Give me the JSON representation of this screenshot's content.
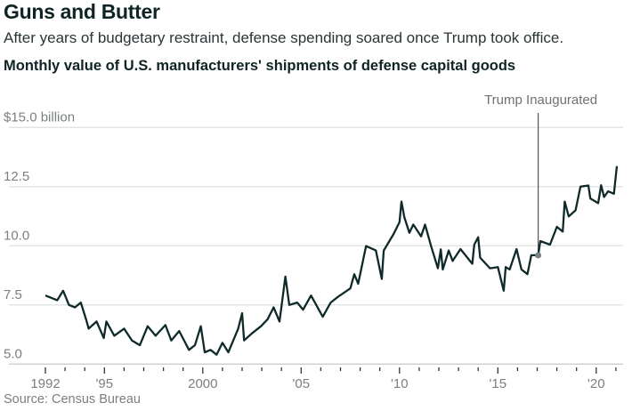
{
  "header": {
    "title": "Guns and Butter",
    "subtitle": "After years of budgetary restraint, defense spending soared once Trump took office.",
    "chart_title": "Monthly value of U.S. manufacturers' shipments of defense capital goods"
  },
  "source": "Source: Census Bureau",
  "chart_data": {
    "type": "line",
    "title": "Monthly value of U.S. manufacturers' shipments of defense capital goods",
    "ylabel": "",
    "xlabel": "",
    "ylim": [
      5.0,
      15.0
    ],
    "xlim": [
      1992,
      2021.1
    ],
    "y_ticks": [
      {
        "value": 15.0,
        "label": "$15.0 billion"
      },
      {
        "value": 12.5,
        "label": "12.5"
      },
      {
        "value": 10.0,
        "label": "10.0"
      },
      {
        "value": 7.5,
        "label": "7.5"
      },
      {
        "value": 5.0,
        "label": "5.0"
      }
    ],
    "x_ticks": [
      {
        "value": 1992,
        "label": "1992"
      },
      {
        "value": 1995,
        "label": "'95"
      },
      {
        "value": 2000,
        "label": "2000"
      },
      {
        "value": 2005,
        "label": "'05"
      },
      {
        "value": 2010,
        "label": "'10"
      },
      {
        "value": 2015,
        "label": "'15"
      },
      {
        "value": 2020,
        "label": "'20"
      }
    ],
    "grid": true,
    "line_color": "#0f2a2a",
    "annotation": {
      "label": "Trump Inaugurated",
      "x": 2017.05,
      "y": 9.6,
      "color": "#7a7f7f"
    },
    "series": [
      {
        "points": [
          [
            1992.0,
            7.9
          ],
          [
            1992.3,
            7.8
          ],
          [
            1992.6,
            7.7
          ],
          [
            1992.9,
            8.1
          ],
          [
            1993.2,
            7.5
          ],
          [
            1993.5,
            7.4
          ],
          [
            1993.8,
            7.6
          ],
          [
            1994.1,
            6.8
          ],
          [
            1994.2,
            6.5
          ],
          [
            1994.6,
            6.8
          ],
          [
            1994.97,
            6.1
          ],
          [
            1995.1,
            6.8
          ],
          [
            1995.5,
            6.2
          ],
          [
            1996.0,
            6.5
          ],
          [
            1996.4,
            6.0
          ],
          [
            1996.8,
            5.8
          ],
          [
            1997.2,
            6.6
          ],
          [
            1997.6,
            6.2
          ],
          [
            1998.1,
            6.65
          ],
          [
            1998.4,
            6.0
          ],
          [
            1998.8,
            6.4
          ],
          [
            1999.3,
            5.6
          ],
          [
            1999.6,
            5.8
          ],
          [
            1999.9,
            6.6
          ],
          [
            2000.1,
            5.5
          ],
          [
            2000.4,
            5.6
          ],
          [
            2000.7,
            5.4
          ],
          [
            2001.0,
            5.9
          ],
          [
            2001.3,
            5.5
          ],
          [
            2001.8,
            6.5
          ],
          [
            2002.0,
            7.15
          ],
          [
            2002.1,
            6.0
          ],
          [
            2002.5,
            6.3
          ],
          [
            2002.96,
            6.6
          ],
          [
            2003.3,
            6.9
          ],
          [
            2003.6,
            7.4
          ],
          [
            2003.9,
            6.8
          ],
          [
            2004.2,
            8.7
          ],
          [
            2004.4,
            7.5
          ],
          [
            2004.8,
            7.6
          ],
          [
            2005.1,
            7.3
          ],
          [
            2005.5,
            7.9
          ],
          [
            2006.1,
            7.0
          ],
          [
            2006.5,
            7.6
          ],
          [
            2006.9,
            7.86
          ],
          [
            2007.5,
            8.2
          ],
          [
            2007.7,
            8.8
          ],
          [
            2007.9,
            8.4
          ],
          [
            2008.3,
            9.99
          ],
          [
            2008.8,
            9.8
          ],
          [
            2009.1,
            8.6
          ],
          [
            2009.2,
            9.8
          ],
          [
            2009.7,
            10.5
          ],
          [
            2010.0,
            11.0
          ],
          [
            2010.1,
            11.87
          ],
          [
            2010.25,
            11.2
          ],
          [
            2010.5,
            10.55
          ],
          [
            2010.7,
            10.9
          ],
          [
            2011.1,
            10.4
          ],
          [
            2011.3,
            10.9
          ],
          [
            2011.6,
            10.0
          ],
          [
            2011.95,
            9.05
          ],
          [
            2012.1,
            9.85
          ],
          [
            2012.2,
            9.0
          ],
          [
            2012.5,
            9.8
          ],
          [
            2012.7,
            9.36
          ],
          [
            2013.1,
            9.86
          ],
          [
            2013.7,
            9.24
          ],
          [
            2013.8,
            10.05
          ],
          [
            2014.0,
            10.36
          ],
          [
            2014.1,
            9.5
          ],
          [
            2014.6,
            9.05
          ],
          [
            2015.0,
            9.1
          ],
          [
            2015.3,
            8.1
          ],
          [
            2015.4,
            9.1
          ],
          [
            2015.6,
            9.0
          ],
          [
            2015.95,
            9.86
          ],
          [
            2016.2,
            9.0
          ],
          [
            2016.5,
            8.8
          ],
          [
            2016.7,
            9.6
          ],
          [
            2017.05,
            9.6
          ],
          [
            2017.16,
            10.2
          ],
          [
            2017.65,
            10.05
          ],
          [
            2018.0,
            10.8
          ],
          [
            2018.3,
            10.6
          ],
          [
            2018.4,
            11.87
          ],
          [
            2018.6,
            11.24
          ],
          [
            2018.95,
            11.5
          ],
          [
            2019.2,
            12.5
          ],
          [
            2019.6,
            12.55
          ],
          [
            2019.7,
            12.0
          ],
          [
            2020.1,
            11.8
          ],
          [
            2020.25,
            12.56
          ],
          [
            2020.4,
            12.06
          ],
          [
            2020.6,
            12.3
          ],
          [
            2020.9,
            12.2
          ],
          [
            2021.05,
            13.37
          ]
        ]
      }
    ]
  }
}
